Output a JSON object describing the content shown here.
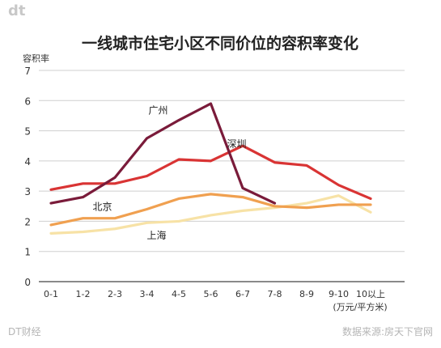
{
  "header": {
    "logo_text": "dt"
  },
  "footer": {
    "brand": "DT财经",
    "source": "数据来源:房天下官网"
  },
  "chart_data": {
    "type": "line",
    "title": "一线城市住宅小区不同价位的容积率变化",
    "ylabel": "容积率",
    "xlabel": "",
    "x_unit": "(万元/平方米)",
    "categories": [
      "0-1",
      "1-2",
      "2-3",
      "3-4",
      "4-5",
      "5-6",
      "6-7",
      "7-8",
      "8-9",
      "9-10",
      "10以上"
    ],
    "ylim": [
      0,
      7
    ],
    "yticks": [
      0,
      1,
      2,
      3,
      4,
      5,
      6,
      7
    ],
    "grid": true,
    "series": [
      {
        "name": "广州",
        "color": "#7a1b3a",
        "values": [
          2.6,
          2.8,
          3.45,
          4.75,
          5.35,
          5.9,
          3.1,
          2.6,
          null,
          null,
          null
        ]
      },
      {
        "name": "深圳",
        "color": "#d93434",
        "values": [
          3.05,
          3.25,
          3.25,
          3.5,
          4.05,
          4.0,
          4.5,
          3.95,
          3.85,
          3.2,
          2.75
        ]
      },
      {
        "name": "北京",
        "color": "#f0a050",
        "values": [
          1.88,
          2.1,
          2.1,
          2.4,
          2.75,
          2.9,
          2.8,
          2.5,
          2.45,
          2.55,
          2.55
        ]
      },
      {
        "name": "上海",
        "color": "#f7e2a6",
        "values": [
          1.6,
          1.65,
          1.75,
          1.95,
          2.0,
          2.2,
          2.35,
          2.45,
          2.6,
          2.85,
          2.3
        ]
      }
    ]
  }
}
